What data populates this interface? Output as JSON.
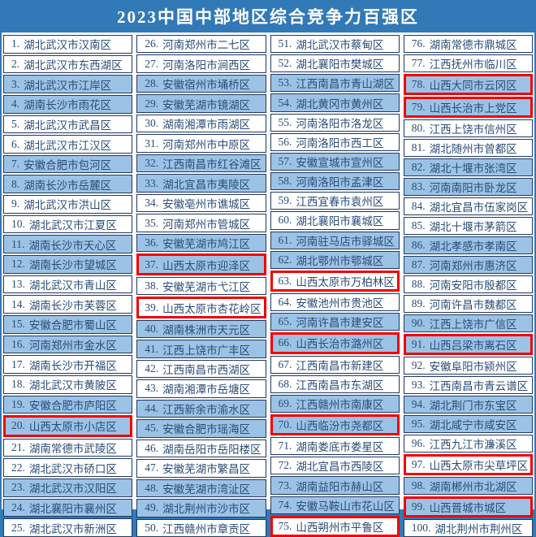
{
  "title": "2023中国中部地区综合竞争力百强区",
  "colors": {
    "page_blue": "#3279B7",
    "row_blue": "#9CC3E5",
    "row_white": "#FFFFFF",
    "border_navy": "#1F3864",
    "text_blue": "#2B4C77",
    "highlight_red": "#F30000",
    "title_text": "#FFFFFF"
  },
  "chart_data": {
    "type": "table",
    "title": "2023中国中部地区综合竞争力百强区",
    "highlighted_ranks": [
      20,
      37,
      39,
      63,
      66,
      70,
      75,
      78,
      79,
      91,
      97,
      99
    ],
    "columns": [
      {
        "items": [
          {
            "rank": 1,
            "name": "湖北武汉市汉南区",
            "highlighted": false
          },
          {
            "rank": 2,
            "name": "湖北武汉市东西湖区",
            "highlighted": false
          },
          {
            "rank": 3,
            "name": "湖北武汉市江岸区",
            "highlighted": false
          },
          {
            "rank": 4,
            "name": "湖南长沙市雨花区",
            "highlighted": false
          },
          {
            "rank": 5,
            "name": "湖北武汉市武昌区",
            "highlighted": false
          },
          {
            "rank": 6,
            "name": "湖北武汉市江汉区",
            "highlighted": false
          },
          {
            "rank": 7,
            "name": "安徽合肥市包河区",
            "highlighted": false
          },
          {
            "rank": 8,
            "name": "湖南长沙市岳麓区",
            "highlighted": false
          },
          {
            "rank": 9,
            "name": "湖北武汉市洪山区",
            "highlighted": false
          },
          {
            "rank": 10,
            "name": "湖北武汉市江夏区",
            "highlighted": false
          },
          {
            "rank": 11,
            "name": "湖南长沙市天心区",
            "highlighted": false
          },
          {
            "rank": 12,
            "name": "湖南长沙市望城区",
            "highlighted": false
          },
          {
            "rank": 13,
            "name": "湖北武汉市青山区",
            "highlighted": false
          },
          {
            "rank": 14,
            "name": "湖南长沙市芙蓉区",
            "highlighted": false
          },
          {
            "rank": 15,
            "name": "安徽合肥市蜀山区",
            "highlighted": false
          },
          {
            "rank": 16,
            "name": "河南郑州市金水区",
            "highlighted": false
          },
          {
            "rank": 17,
            "name": "湖南长沙市开福区",
            "highlighted": false
          },
          {
            "rank": 18,
            "name": "湖北武汉市黄陂区",
            "highlighted": false
          },
          {
            "rank": 19,
            "name": "安徽合肥市庐阳区",
            "highlighted": false
          },
          {
            "rank": 20,
            "name": "山西太原市小店区",
            "highlighted": true
          },
          {
            "rank": 21,
            "name": "湖南常德市武陵区",
            "highlighted": false
          },
          {
            "rank": 22,
            "name": "湖北武汉市硚口区",
            "highlighted": false
          },
          {
            "rank": 23,
            "name": "湖北武汉市汉阳区",
            "highlighted": false
          },
          {
            "rank": 24,
            "name": "湖北襄阳市襄州区",
            "highlighted": false
          },
          {
            "rank": 25,
            "name": "湖北武汉市新洲区",
            "highlighted": false
          }
        ]
      },
      {
        "items": [
          {
            "rank": 26,
            "name": "河南郑州市二七区",
            "highlighted": false
          },
          {
            "rank": 27,
            "name": "河南洛阳市涧西区",
            "highlighted": false
          },
          {
            "rank": 28,
            "name": "安徽宿州市埇桥区",
            "highlighted": false
          },
          {
            "rank": 29,
            "name": "安徽芜湖市镜湖区",
            "highlighted": false
          },
          {
            "rank": 30,
            "name": "湖南湘潭市雨湖区",
            "highlighted": false
          },
          {
            "rank": 31,
            "name": "河南郑州市中原区",
            "highlighted": false
          },
          {
            "rank": 32,
            "name": "江西南昌市红谷滩区",
            "highlighted": false
          },
          {
            "rank": 33,
            "name": "湖北宜昌市夷陵区",
            "highlighted": false
          },
          {
            "rank": 34,
            "name": "安徽亳州市谯城区",
            "highlighted": false
          },
          {
            "rank": 35,
            "name": "河南郑州市管城区",
            "highlighted": false
          },
          {
            "rank": 36,
            "name": "安徽芜湖市鸠江区",
            "highlighted": false
          },
          {
            "rank": 37,
            "name": "山西太原市迎泽区",
            "highlighted": true
          },
          {
            "rank": 38,
            "name": "安徽芜湖市弋江区",
            "highlighted": false
          },
          {
            "rank": 39,
            "name": "山西太原市杏花岭区",
            "highlighted": true
          },
          {
            "rank": 40,
            "name": "湖南株洲市天元区",
            "highlighted": false
          },
          {
            "rank": 41,
            "name": "江西上饶市广丰区",
            "highlighted": false
          },
          {
            "rank": 42,
            "name": "江西南昌市西湖区",
            "highlighted": false
          },
          {
            "rank": 43,
            "name": "湖南湘潭市岳塘区",
            "highlighted": false
          },
          {
            "rank": 44,
            "name": "江西新余市渝水区",
            "highlighted": false
          },
          {
            "rank": 45,
            "name": "安徽合肥市瑶海区",
            "highlighted": false
          },
          {
            "rank": 46,
            "name": "湖南岳阳市岳阳楼区",
            "highlighted": false
          },
          {
            "rank": 47,
            "name": "安徽芜湖市繁昌区",
            "highlighted": false
          },
          {
            "rank": 48,
            "name": "安徽芜湖市湾沚区",
            "highlighted": false
          },
          {
            "rank": 49,
            "name": "湖北荆州市沙市区",
            "highlighted": false
          },
          {
            "rank": 50,
            "name": "江西赣州市章贡区",
            "highlighted": false
          }
        ]
      },
      {
        "items": [
          {
            "rank": 51,
            "name": "湖北武汉市蔡甸区",
            "highlighted": false
          },
          {
            "rank": 52,
            "name": "湖北襄阳市樊城区",
            "highlighted": false
          },
          {
            "rank": 53,
            "name": "江西南昌市青山湖区",
            "highlighted": false
          },
          {
            "rank": 54,
            "name": "湖北黄冈市黄州区",
            "highlighted": false
          },
          {
            "rank": 55,
            "name": "河南洛阳市洛龙区",
            "highlighted": false
          },
          {
            "rank": 56,
            "name": "河南洛阳市西工区",
            "highlighted": false
          },
          {
            "rank": 57,
            "name": "安徽宣城市宣州区",
            "highlighted": false
          },
          {
            "rank": 58,
            "name": "河南洛阳市孟津区",
            "highlighted": false
          },
          {
            "rank": 59,
            "name": "江西宜春市袁州区",
            "highlighted": false
          },
          {
            "rank": 60,
            "name": "湖北襄阳市襄城区",
            "highlighted": false
          },
          {
            "rank": 61,
            "name": "河南驻马店市驿城区",
            "highlighted": false
          },
          {
            "rank": 62,
            "name": "湖北鄂州市鄂城区",
            "highlighted": false
          },
          {
            "rank": 63,
            "name": "山西太原市万柏林区",
            "highlighted": true
          },
          {
            "rank": 64,
            "name": "安徽池州市贵池区",
            "highlighted": false
          },
          {
            "rank": 65,
            "name": "河南许昌市建安区",
            "highlighted": false
          },
          {
            "rank": 66,
            "name": "山西长治市潞州区",
            "highlighted": true
          },
          {
            "rank": 67,
            "name": "江西南昌市新建区",
            "highlighted": false
          },
          {
            "rank": 68,
            "name": "江西南昌市东湖区",
            "highlighted": false
          },
          {
            "rank": 69,
            "name": "江西赣州市南康区",
            "highlighted": false
          },
          {
            "rank": 70,
            "name": "山西临汾市尧都区",
            "highlighted": true
          },
          {
            "rank": 71,
            "name": "湖南娄底市娄星区",
            "highlighted": false
          },
          {
            "rank": 72,
            "name": "湖北宜昌市西陵区",
            "highlighted": false
          },
          {
            "rank": 73,
            "name": "湖南益阳市赫山区",
            "highlighted": false
          },
          {
            "rank": 74,
            "name": "安徽马鞍山市花山区",
            "highlighted": false
          },
          {
            "rank": 75,
            "name": "山西朔州市平鲁区",
            "highlighted": true
          }
        ]
      },
      {
        "items": [
          {
            "rank": 76,
            "name": "湖南常德市鼎城区",
            "highlighted": false
          },
          {
            "rank": 77,
            "name": "江西抚州市临川区",
            "highlighted": false
          },
          {
            "rank": 78,
            "name": "山西大同市云冈区",
            "highlighted": true
          },
          {
            "rank": 79,
            "name": "山西长治市上党区",
            "highlighted": true
          },
          {
            "rank": 80,
            "name": "江西上饶市信州区",
            "highlighted": false
          },
          {
            "rank": 81,
            "name": "湖北随州市曾都区",
            "highlighted": false
          },
          {
            "rank": 82,
            "name": "湖北十堰市张湾区",
            "highlighted": false
          },
          {
            "rank": 83,
            "name": "河南南阳市卧龙区",
            "highlighted": false
          },
          {
            "rank": 84,
            "name": "湖北宜昌市伍家岗区",
            "highlighted": false
          },
          {
            "rank": 85,
            "name": "湖北十堰市茅箭区",
            "highlighted": false
          },
          {
            "rank": 86,
            "name": "湖北孝感市孝南区",
            "highlighted": false
          },
          {
            "rank": 87,
            "name": "河南郑州市惠济区",
            "highlighted": false
          },
          {
            "rank": 88,
            "name": "河南安阳市殷都区",
            "highlighted": false
          },
          {
            "rank": 89,
            "name": "河南许昌市魏都区",
            "highlighted": false
          },
          {
            "rank": 90,
            "name": "江西上饶市广信区",
            "highlighted": false
          },
          {
            "rank": 91,
            "name": "山西吕梁市离石区",
            "highlighted": true
          },
          {
            "rank": 92,
            "name": "安徽阜阳市颍州区",
            "highlighted": false
          },
          {
            "rank": 93,
            "name": "江西南昌市青云谱区",
            "highlighted": false
          },
          {
            "rank": 94,
            "name": "湖北荆门市东宝区",
            "highlighted": false
          },
          {
            "rank": 95,
            "name": "湖北咸宁市咸安区",
            "highlighted": false
          },
          {
            "rank": 96,
            "name": "江西九江市濂溪区",
            "highlighted": false
          },
          {
            "rank": 97,
            "name": "山西太原市尖草坪区",
            "highlighted": true
          },
          {
            "rank": 98,
            "name": "湖南郴州市北湖区",
            "highlighted": false
          },
          {
            "rank": 99,
            "name": "山西晋城市城区",
            "highlighted": true
          },
          {
            "rank": 100,
            "name": "湖北荆州市荆州区",
            "highlighted": false
          }
        ]
      }
    ]
  }
}
